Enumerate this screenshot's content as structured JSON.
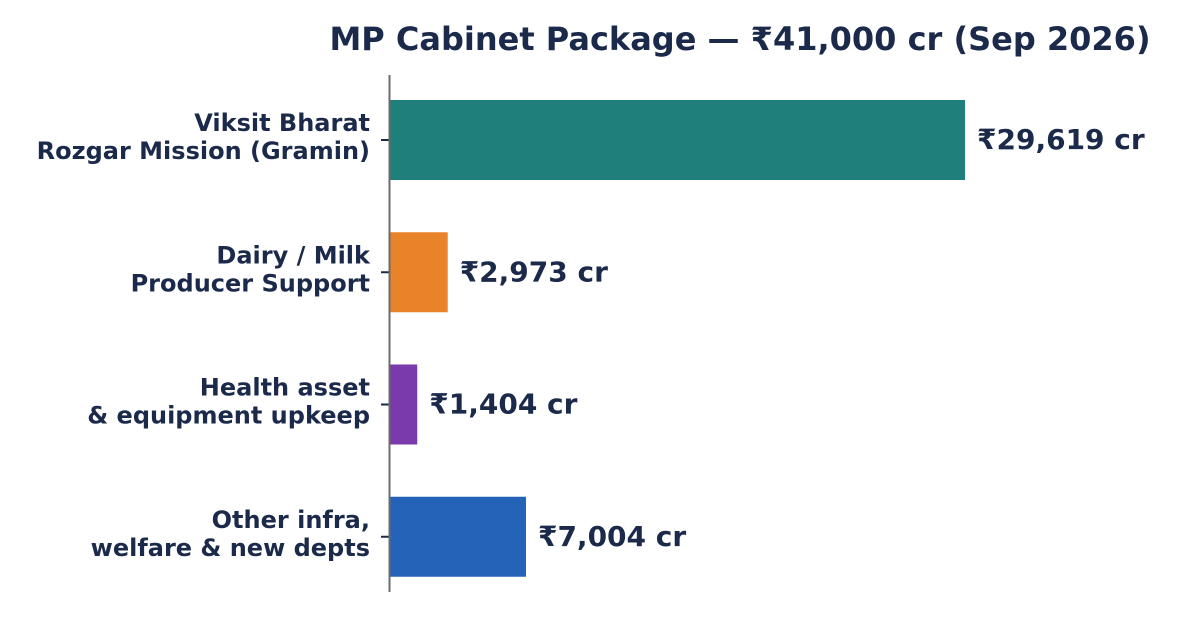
{
  "chart_data": {
    "type": "bar",
    "orientation": "horizontal",
    "title": "MP Cabinet Package — ₹41,000 cr (Sep 2026)",
    "xlabel": "",
    "ylabel": "",
    "categories": [
      [
        "Viksit Bharat",
        "Rozgar Mission (Gramin)"
      ],
      [
        "Dairy / Milk",
        "Producer Support"
      ],
      [
        "Health asset",
        "& equipment upkeep"
      ],
      [
        "Other infra,",
        "welfare & new depts"
      ]
    ],
    "values": [
      29619,
      2973,
      1404,
      7004
    ],
    "value_labels": [
      "₹29,619 cr",
      "₹2,973 cr",
      "₹1,404 cr",
      "₹7,004 cr"
    ],
    "colors": [
      "#1f7f7a",
      "#e8832a",
      "#7b3aac",
      "#2563b8"
    ],
    "xlim": [
      0,
      41000
    ],
    "grid": false,
    "legend": "none"
  }
}
